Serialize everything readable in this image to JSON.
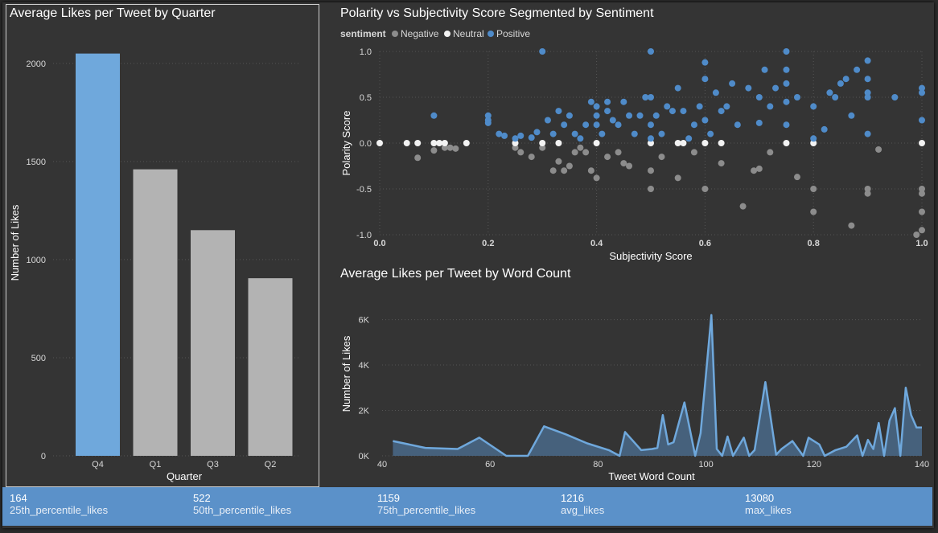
{
  "colors": {
    "accent": "#6fa8dc",
    "bar_default": "#b3b3b3",
    "negative": "#8c8c8c",
    "neutral": "#f2f2f2",
    "positive": "#4f8bc9"
  },
  "bar_chart_title": "Average Likes per Tweet by Quarter",
  "scatter_chart_title": "Polarity vs Subjectivity Score Segmented by Sentiment",
  "line_chart_title": "Average Likes per Tweet by Word Count",
  "legend": {
    "title": "sentiment",
    "items": [
      "Negative",
      "Neutral",
      "Positive"
    ]
  },
  "chart_data": [
    {
      "type": "bar",
      "title": "Average Likes per Tweet by Quarter",
      "categories": [
        "Q4",
        "Q1",
        "Q3",
        "Q2"
      ],
      "values": [
        2050,
        1460,
        1150,
        905
      ],
      "highlight": "Q4",
      "xlabel": "Quarter",
      "ylabel": "Number of Likes",
      "ylim": [
        0,
        2200
      ],
      "yticks": [
        "0",
        "500",
        "1000",
        "1500",
        "2000"
      ],
      "grid": true
    },
    {
      "type": "scatter",
      "title": "Polarity vs Subjectivity Score Segmented by Sentiment",
      "xlabel": "Subjectivity Score",
      "ylabel": "Polarity Score",
      "xlim": [
        0,
        1
      ],
      "ylim": [
        -1,
        1
      ],
      "xticks": [
        "0.0",
        "0.2",
        "0.4",
        "0.6",
        "0.8",
        "1.0"
      ],
      "yticks": [
        "-1.0",
        "-0.5",
        "0.0",
        "0.5",
        "1.0"
      ],
      "legend_position": "top-left",
      "series": [
        {
          "name": "Negative",
          "points": [
            [
              0.07,
              -0.16
            ],
            [
              0.1,
              -0.08
            ],
            [
              0.12,
              -0.05
            ],
            [
              0.13,
              -0.05
            ],
            [
              0.14,
              -0.06
            ],
            [
              0.25,
              -0.05
            ],
            [
              0.26,
              -0.1
            ],
            [
              0.28,
              -0.15
            ],
            [
              0.3,
              -0.05
            ],
            [
              0.32,
              -0.3
            ],
            [
              0.33,
              -0.2
            ],
            [
              0.34,
              -0.3
            ],
            [
              0.35,
              -0.25
            ],
            [
              0.36,
              -0.1
            ],
            [
              0.37,
              -0.05
            ],
            [
              0.38,
              -0.1
            ],
            [
              0.39,
              -0.3
            ],
            [
              0.4,
              -0.38
            ],
            [
              0.42,
              -0.15
            ],
            [
              0.44,
              -0.1
            ],
            [
              0.45,
              -0.22
            ],
            [
              0.46,
              -0.25
            ],
            [
              0.5,
              -0.3
            ],
            [
              0.5,
              -0.5
            ],
            [
              0.52,
              -0.15
            ],
            [
              0.55,
              -0.38
            ],
            [
              0.58,
              -0.1
            ],
            [
              0.6,
              -0.5
            ],
            [
              0.63,
              -0.22
            ],
            [
              0.67,
              -0.69
            ],
            [
              0.69,
              -0.3
            ],
            [
              0.7,
              -0.28
            ],
            [
              0.72,
              -0.1
            ],
            [
              0.77,
              -0.37
            ],
            [
              0.8,
              -0.5
            ],
            [
              0.8,
              -0.75
            ],
            [
              0.87,
              -0.9
            ],
            [
              0.9,
              -0.5
            ],
            [
              0.92,
              -0.07
            ],
            [
              0.9,
              -0.55
            ],
            [
              1.0,
              -0.5
            ],
            [
              1.0,
              -0.75
            ],
            [
              1.0,
              -0.95
            ],
            [
              1.0,
              -0.55
            ],
            [
              0.99,
              -1.0
            ]
          ]
        },
        {
          "name": "Neutral",
          "points": [
            [
              0.0,
              0.0
            ],
            [
              0.05,
              0.0
            ],
            [
              0.07,
              0.0
            ],
            [
              0.1,
              0.0
            ],
            [
              0.11,
              0.0
            ],
            [
              0.12,
              0.0
            ],
            [
              0.16,
              0.0
            ],
            [
              0.25,
              0.0
            ],
            [
              0.3,
              0.0
            ],
            [
              0.33,
              0.0
            ],
            [
              0.4,
              0.0
            ],
            [
              0.5,
              0.0
            ],
            [
              0.55,
              0.0
            ],
            [
              0.56,
              0.0
            ],
            [
              0.6,
              0.0
            ],
            [
              0.63,
              0.0
            ],
            [
              0.75,
              0.0
            ],
            [
              0.8,
              0.0
            ],
            [
              1.0,
              0.0
            ]
          ]
        },
        {
          "name": "Positive",
          "points": [
            [
              0.1,
              0.3
            ],
            [
              0.2,
              0.3
            ],
            [
              0.2,
              0.22
            ],
            [
              0.2,
              0.25
            ],
            [
              0.22,
              0.1
            ],
            [
              0.23,
              0.08
            ],
            [
              0.25,
              0.05
            ],
            [
              0.26,
              0.08
            ],
            [
              0.28,
              0.06
            ],
            [
              0.29,
              0.12
            ],
            [
              0.3,
              1.0
            ],
            [
              0.31,
              0.25
            ],
            [
              0.32,
              0.1
            ],
            [
              0.33,
              0.35
            ],
            [
              0.34,
              0.2
            ],
            [
              0.35,
              0.3
            ],
            [
              0.36,
              0.1
            ],
            [
              0.37,
              0.05
            ],
            [
              0.38,
              0.2
            ],
            [
              0.39,
              0.45
            ],
            [
              0.4,
              0.4
            ],
            [
              0.4,
              0.3
            ],
            [
              0.4,
              0.2
            ],
            [
              0.41,
              0.1
            ],
            [
              0.42,
              0.35
            ],
            [
              0.42,
              0.45
            ],
            [
              0.43,
              0.25
            ],
            [
              0.44,
              0.2
            ],
            [
              0.45,
              0.45
            ],
            [
              0.46,
              0.3
            ],
            [
              0.47,
              0.1
            ],
            [
              0.48,
              0.3
            ],
            [
              0.49,
              0.5
            ],
            [
              0.5,
              0.05
            ],
            [
              0.5,
              0.2
            ],
            [
              0.5,
              0.5
            ],
            [
              0.5,
              1.0
            ],
            [
              0.51,
              0.3
            ],
            [
              0.52,
              0.1
            ],
            [
              0.53,
              0.4
            ],
            [
              0.54,
              0.35
            ],
            [
              0.55,
              0.6
            ],
            [
              0.56,
              0.35
            ],
            [
              0.57,
              0.05
            ],
            [
              0.58,
              0.2
            ],
            [
              0.59,
              0.4
            ],
            [
              0.6,
              0.25
            ],
            [
              0.6,
              0.7
            ],
            [
              0.6,
              0.88
            ],
            [
              0.61,
              0.1
            ],
            [
              0.62,
              0.55
            ],
            [
              0.63,
              0.35
            ],
            [
              0.64,
              0.4
            ],
            [
              0.65,
              0.65
            ],
            [
              0.66,
              0.2
            ],
            [
              0.68,
              0.6
            ],
            [
              0.7,
              0.22
            ],
            [
              0.7,
              0.5
            ],
            [
              0.71,
              0.8
            ],
            [
              0.72,
              0.4
            ],
            [
              0.73,
              0.6
            ],
            [
              0.75,
              0.2
            ],
            [
              0.75,
              0.45
            ],
            [
              0.75,
              0.65
            ],
            [
              0.75,
              0.8
            ],
            [
              0.75,
              1.0
            ],
            [
              0.77,
              0.5
            ],
            [
              0.8,
              0.05
            ],
            [
              0.8,
              0.4
            ],
            [
              0.82,
              0.15
            ],
            [
              0.83,
              0.55
            ],
            [
              0.84,
              0.5
            ],
            [
              0.85,
              0.65
            ],
            [
              0.86,
              0.7
            ],
            [
              0.87,
              0.3
            ],
            [
              0.88,
              0.8
            ],
            [
              0.9,
              0.5
            ],
            [
              0.9,
              0.55
            ],
            [
              0.9,
              0.7
            ],
            [
              0.9,
              0.9
            ],
            [
              0.9,
              0.1
            ],
            [
              0.95,
              0.5
            ],
            [
              1.0,
              0.55
            ],
            [
              1.0,
              0.25
            ],
            [
              1.0,
              0.6
            ]
          ]
        }
      ]
    },
    {
      "type": "area",
      "title": "Average Likes per Tweet by Word Count",
      "xlabel": "Tweet Word Count",
      "ylabel": "Number of Likes",
      "xlim": [
        40,
        140
      ],
      "ylim": [
        0,
        6800
      ],
      "xticks": [
        "40",
        "60",
        "80",
        "100",
        "120",
        "140"
      ],
      "yticks": [
        "0K",
        "2K",
        "4K",
        "6K"
      ],
      "x": [
        42,
        48,
        54,
        58,
        63,
        67,
        70,
        74,
        78,
        82,
        84,
        85,
        88,
        90,
        91,
        92,
        93,
        94,
        96,
        98,
        99,
        101,
        102,
        103,
        104,
        105,
        107,
        108,
        109,
        111,
        113,
        114,
        116,
        118,
        119,
        121,
        122,
        124,
        126,
        128,
        129,
        130,
        131,
        132,
        133,
        134,
        135,
        136,
        137,
        138,
        139,
        140
      ],
      "values": [
        650,
        350,
        300,
        800,
        0,
        0,
        1300,
        950,
        550,
        250,
        0,
        1050,
        250,
        300,
        350,
        1800,
        500,
        600,
        2350,
        0,
        1000,
        6200,
        300,
        0,
        850,
        0,
        800,
        0,
        250,
        3250,
        50,
        300,
        650,
        0,
        800,
        500,
        0,
        250,
        400,
        900,
        0,
        700,
        300,
        1450,
        0,
        1550,
        2100,
        0,
        3000,
        1800,
        1250,
        1250
      ]
    }
  ],
  "kpis": [
    {
      "value": "164",
      "label": "25th_percentile_likes"
    },
    {
      "value": "522",
      "label": "50th_percentile_likes"
    },
    {
      "value": "1159",
      "label": "75th_percentile_likes"
    },
    {
      "value": "1216",
      "label": "avg_likes"
    },
    {
      "value": "13080",
      "label": "max_likes"
    }
  ]
}
